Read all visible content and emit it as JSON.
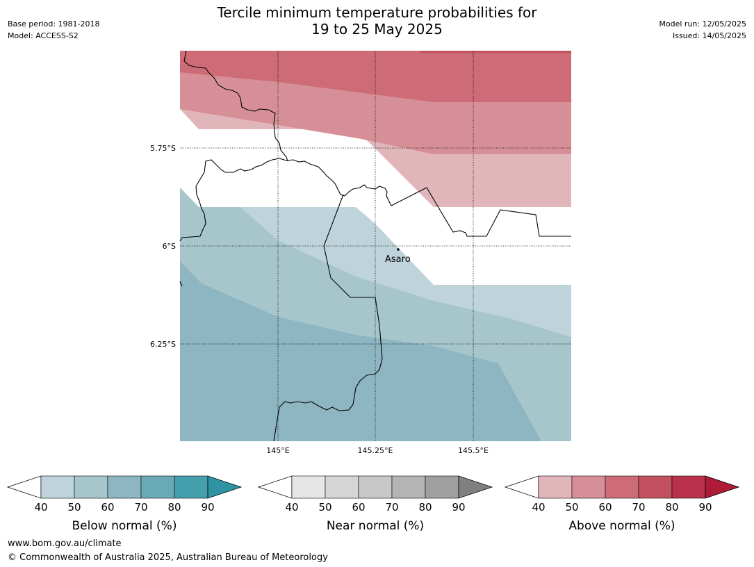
{
  "header": {
    "title_line1": "Tercile minimum temperature probabilities for",
    "title_line2": "19 to 25 May 2025",
    "base_period": "Base period: 1981-2018",
    "model": "Model: ACCESS-S2",
    "model_run": "Model run: 12/05/2025",
    "issued": "Issued: 14/05/2025"
  },
  "map": {
    "lat_labels": [
      "5.75°S",
      "6°S",
      "6.25°S"
    ],
    "lon_labels": [
      "145°E",
      "145.25°E",
      "145.5°E"
    ],
    "town": "Asaro"
  },
  "colorbars": [
    {
      "title": "Below normal (%)",
      "ticks": [
        "40",
        "50",
        "60",
        "70",
        "80",
        "90"
      ],
      "colors": [
        "#bfd4da",
        "#a6c6cb",
        "#8db5c2",
        "#6aaab7",
        "#44a0ad"
      ],
      "under_color": "#ffffff",
      "over_color": "#2e93a3"
    },
    {
      "title": "Near normal (%)",
      "ticks": [
        "40",
        "50",
        "60",
        "70",
        "80",
        "90"
      ],
      "colors": [
        "#e6e6e6",
        "#d6d6d6",
        "#c8c8c8",
        "#b4b4b4",
        "#a0a0a0"
      ],
      "under_color": "#ffffff",
      "over_color": "#808080"
    },
    {
      "title": "Above normal (%)",
      "ticks": [
        "40",
        "50",
        "60",
        "70",
        "80",
        "90"
      ],
      "colors": [
        "#e1b6bb",
        "#d78f97",
        "#cd6b76",
        "#c3505f",
        "#b9314a"
      ],
      "under_color": "#ffffff",
      "over_color": "#ad1b38"
    }
  ],
  "footer": {
    "url": "www.bom.gov.au/climate",
    "copyright": "© Commonwealth of Australia 2025, Australian Bureau of Meteorology"
  }
}
